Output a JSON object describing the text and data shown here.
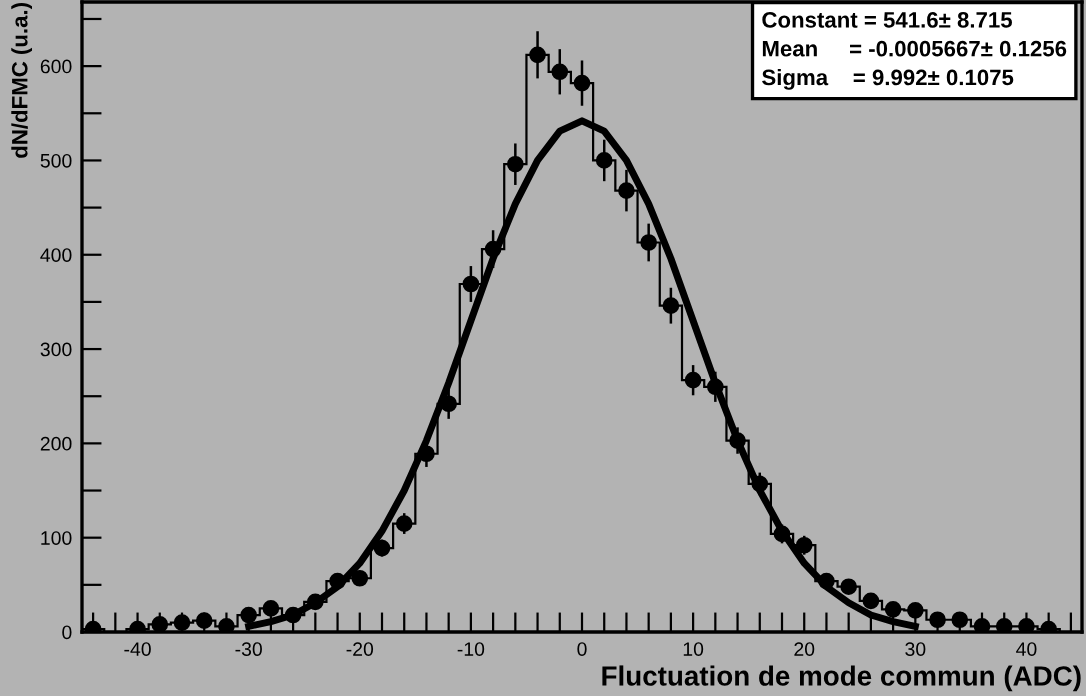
{
  "chart_data": {
    "type": "histogram",
    "xlabel": "Fluctuation de mode commun (ADC)",
    "ylabel": "dN/dFMC (u.a.)",
    "xlim": [
      -45,
      45
    ],
    "ylim": [
      0,
      668
    ],
    "xticks": [
      {
        "value": -44,
        "label": null
      },
      {
        "value": -42,
        "label": null
      },
      -40,
      {
        "value": -38,
        "label": null
      },
      {
        "value": -36,
        "label": null
      },
      {
        "value": -34,
        "label": null
      },
      {
        "value": -32,
        "label": null
      },
      -30,
      {
        "value": -28,
        "label": null
      },
      {
        "value": -26,
        "label": null
      },
      {
        "value": -24,
        "label": null
      },
      {
        "value": -22,
        "label": null
      },
      -20,
      {
        "value": -18,
        "label": null
      },
      {
        "value": -16,
        "label": null
      },
      {
        "value": -14,
        "label": null
      },
      {
        "value": -12,
        "label": null
      },
      -10,
      {
        "value": -8,
        "label": null
      },
      {
        "value": -6,
        "label": null
      },
      {
        "value": -4,
        "label": null
      },
      {
        "value": -2,
        "label": null
      },
      0,
      {
        "value": 2,
        "label": null
      },
      {
        "value": 4,
        "label": null
      },
      {
        "value": 6,
        "label": null
      },
      {
        "value": 8,
        "label": null
      },
      10,
      {
        "value": 12,
        "label": null
      },
      {
        "value": 14,
        "label": null
      },
      {
        "value": 16,
        "label": null
      },
      {
        "value": 18,
        "label": null
      },
      20,
      {
        "value": 22,
        "label": null
      },
      {
        "value": 24,
        "label": null
      },
      {
        "value": 26,
        "label": null
      },
      {
        "value": 28,
        "label": null
      },
      30,
      {
        "value": 32,
        "label": null
      },
      {
        "value": 34,
        "label": null
      },
      {
        "value": 36,
        "label": null
      },
      {
        "value": 38,
        "label": null
      },
      40,
      {
        "value": 42,
        "label": null
      },
      {
        "value": 44,
        "label": null
      }
    ],
    "yticks": [
      0,
      {
        "value": 50,
        "label": null
      },
      100,
      {
        "value": 150,
        "label": null
      },
      200,
      {
        "value": 250,
        "label": null
      },
      300,
      {
        "value": 350,
        "label": null
      },
      400,
      {
        "value": 450,
        "label": null
      },
      500,
      {
        "value": 550,
        "label": null
      },
      600,
      {
        "value": 650,
        "label": null
      }
    ],
    "grid": false,
    "legend": false,
    "annotations": [
      "Constant = 541.6± 8.715",
      "Mean     = -0.0005667± 0.1256",
      "Sigma    = 9.992± 0.1075"
    ],
    "series": [
      {
        "type": "histogram",
        "color": "#000000",
        "bins": [
          -45,
          -43,
          -41,
          -39,
          -37,
          -35,
          -33,
          -31,
          -29,
          -27,
          -25,
          -23,
          -21,
          -19,
          -17,
          -15,
          -13,
          -11,
          -9,
          -7,
          -5,
          -3,
          -1,
          1,
          3,
          5,
          7,
          9,
          11,
          13,
          15,
          17,
          19,
          21,
          23,
          25,
          27,
          29,
          31,
          33,
          35,
          37,
          39,
          41,
          43
        ],
        "values": [
          3,
          0,
          3,
          8,
          10,
          12,
          6,
          18,
          25,
          18,
          32,
          54,
          57,
          89,
          115,
          189,
          242,
          369,
          406,
          496,
          612,
          594,
          582,
          500,
          468,
          413,
          346,
          267,
          260,
          203,
          157,
          104,
          92,
          54,
          48,
          33,
          24,
          23,
          13,
          13,
          6,
          6,
          6,
          3
        ]
      },
      {
        "type": "scatter",
        "color": "#000000",
        "marker": "circle",
        "x": [
          -44,
          -42,
          -40,
          -38,
          -36,
          -34,
          -32,
          -30,
          -28,
          -26,
          -24,
          -22,
          -20,
          -18,
          -16,
          -14,
          -12,
          -10,
          -8,
          -6,
          -4,
          -2,
          0,
          2,
          4,
          6,
          8,
          10,
          12,
          14,
          16,
          18,
          20,
          22,
          24,
          26,
          28,
          30,
          32,
          34,
          36,
          38,
          40,
          42
        ],
        "values": [
          3,
          null,
          3,
          8,
          10,
          12,
          6,
          18,
          25,
          18,
          32,
          54,
          57,
          89,
          115,
          189,
          242,
          369,
          406,
          496,
          612,
          594,
          582,
          500,
          468,
          413,
          346,
          267,
          260,
          203,
          157,
          104,
          92,
          54,
          48,
          33,
          24,
          23,
          13,
          13,
          6,
          6,
          6,
          3
        ],
        "errors": [
          2,
          null,
          2,
          3,
          3,
          3.5,
          2.5,
          4,
          5,
          4,
          6,
          7,
          8,
          9,
          11,
          14,
          16,
          19,
          20,
          22,
          25,
          24,
          24,
          22,
          22,
          20,
          19,
          16,
          16,
          14,
          12,
          10,
          10,
          7,
          7,
          6,
          5,
          5,
          4,
          4,
          2.5,
          2.5,
          2.5,
          2
        ]
      },
      {
        "type": "line",
        "color": "#000000",
        "line_style": "solid",
        "x": [
          -30,
          -28,
          -26,
          -24,
          -22,
          -20,
          -18,
          -16,
          -14,
          -12,
          -10,
          -8,
          -6,
          -4,
          -2,
          0,
          2,
          4,
          6,
          8,
          10,
          12,
          14,
          16,
          18,
          20,
          22,
          24,
          26,
          28,
          30
        ],
        "values": [
          6,
          11,
          18,
          31,
          48,
          73,
          107,
          150,
          203,
          264,
          330,
          396,
          454,
          500,
          531,
          542,
          531,
          500,
          454,
          396,
          330,
          264,
          203,
          150,
          107,
          73,
          48,
          31,
          18,
          11,
          6
        ]
      }
    ]
  }
}
